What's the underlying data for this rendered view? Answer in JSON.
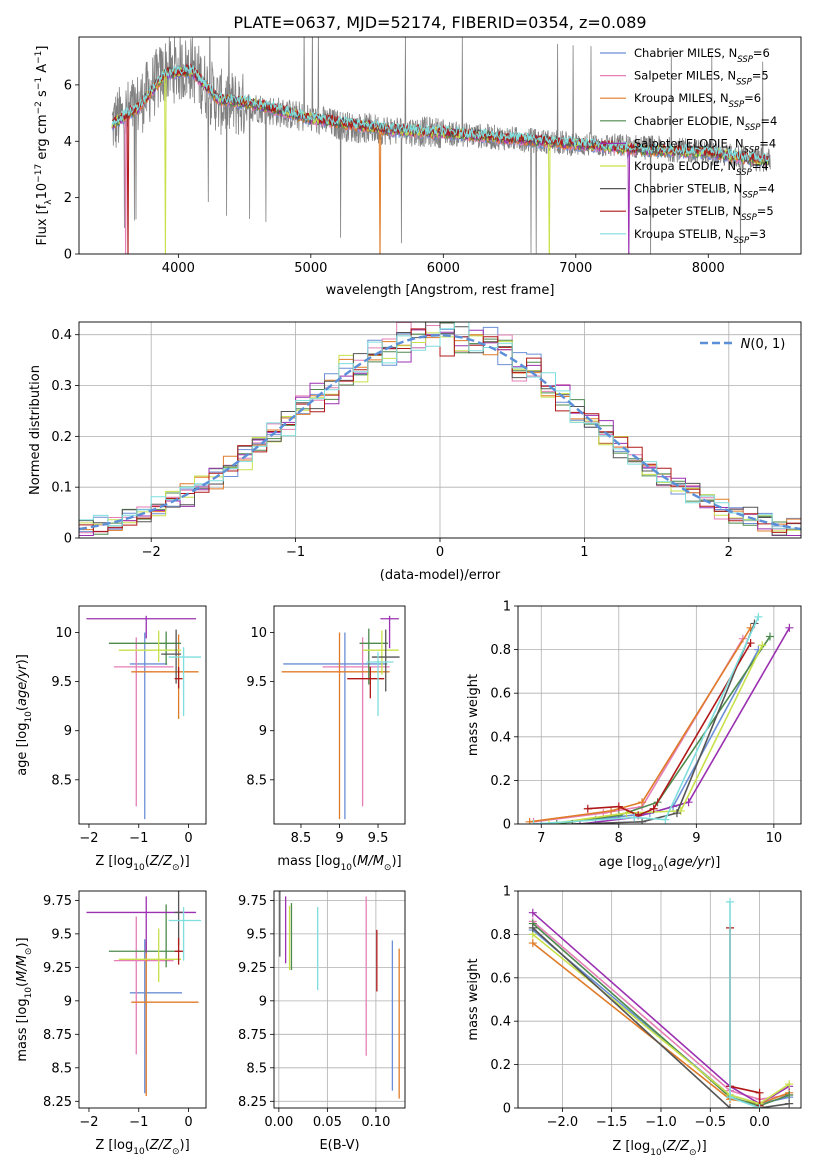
{
  "figure": {
    "title": "PLATE=0637, MJD=52174, FIBERID=0354, z=0.089",
    "background": "#ffffff"
  },
  "series": [
    {
      "name": "Chabrier MILES, N$_{SSP}$=6",
      "label": "Chabrier MILES, N",
      "sub": "SSP",
      "suffix": "=6",
      "color": "#6b8fd6"
    },
    {
      "name": "Salpeter MILES, N$_{SSP}$=5",
      "label": "Salpeter MILES, N",
      "sub": "SSP",
      "suffix": "=5",
      "color": "#e57fb6"
    },
    {
      "name": "Kroupa MILES, N$_{SSP}$=6",
      "label": "Kroupa MILES, N",
      "sub": "SSP",
      "suffix": "=6",
      "color": "#e07b28"
    },
    {
      "name": "Chabrier ELODIE, N$_{SSP}$=4",
      "label": "Chabrier ELODIE, N",
      "sub": "SSP",
      "suffix": "=4",
      "color": "#4e8a4e"
    },
    {
      "name": "Salpeter ELODIE, N$_{SSP}$=4",
      "label": "Salpeter ELODIE, N",
      "sub": "SSP",
      "suffix": "=4",
      "color": "#9b30b0"
    },
    {
      "name": "Kroupa ELODIE, N$_{SSP}$=4",
      "label": "Kroupa ELODIE, N",
      "sub": "SSP",
      "suffix": "=4",
      "color": "#c8e04a"
    },
    {
      "name": "Chabrier STELIB, N$_{SSP}$=4",
      "label": "Chabrier STELIB, N",
      "sub": "SSP",
      "suffix": "=4",
      "color": "#555555"
    },
    {
      "name": "Salpeter STELIB, N$_{SSP}$=5",
      "label": "Salpeter STELIB, N",
      "sub": "SSP",
      "suffix": "=5",
      "color": "#b01818"
    },
    {
      "name": "Kroupa STELIB, N$_{SSP}$=3",
      "label": "Kroupa STELIB, N",
      "sub": "SSP",
      "suffix": "=3",
      "color": "#7fdede"
    }
  ],
  "data_color": "#808080",
  "chart_data": [
    {
      "id": "spectrum",
      "type": "line",
      "xlabel": "wavelength [Angstrom, rest frame]",
      "ylabel": "Flux [f$_\\lambda$10$^{-17}$ erg cm$^{-2}$ s$^{-1}$ A$^{-1}$]",
      "ylabel_parts": [
        "Flux [f",
        "λ",
        "10",
        "−17",
        " erg cm",
        "−2",
        " s",
        "−1",
        " A",
        "−1",
        "]"
      ],
      "xlim": [
        3250,
        8700
      ],
      "ylim": [
        0,
        7.7
      ],
      "xticks": [
        4000,
        5000,
        6000,
        7000,
        8000
      ],
      "yticks": [
        0,
        2,
        4,
        6
      ],
      "data_knots": {
        "x": [
          3500,
          3700,
          3900,
          4100,
          4300,
          4600,
          5000,
          5300,
          5600,
          6000,
          6500,
          7000,
          7500,
          8000,
          8450
        ],
        "y": [
          4.6,
          5.3,
          6.5,
          6.6,
          5.4,
          5.2,
          4.8,
          4.5,
          4.4,
          4.3,
          4.1,
          3.9,
          3.8,
          3.6,
          3.3
        ]
      },
      "model_knots": {
        "x": [
          3500,
          3700,
          3900,
          4100,
          4300,
          4600,
          5000,
          5300,
          5600,
          6000,
          6500,
          7000,
          7500,
          8000,
          8450
        ],
        "y": [
          4.6,
          5.2,
          6.4,
          6.5,
          5.5,
          5.3,
          4.8,
          4.6,
          4.4,
          4.3,
          4.1,
          3.9,
          3.7,
          3.6,
          3.3
        ]
      },
      "data_xrange": [
        3500,
        8470
      ],
      "legend_position": "upper right"
    },
    {
      "id": "residuals",
      "type": "histogram",
      "xlabel": "(data-model)/error",
      "ylabel": "Normed distribution",
      "xlim": [
        -2.5,
        2.5
      ],
      "ylim": [
        0,
        0.425
      ],
      "xticks": [
        -2,
        -1,
        0,
        1,
        2
      ],
      "yticks": [
        0.0,
        0.1,
        0.2,
        0.3,
        0.4
      ],
      "bin_width": 0.1,
      "gaussian_label": "N(0,1)",
      "gaussian_color": "#5b8fd8",
      "grid": true,
      "legend_position": "upper right"
    },
    {
      "id": "age_vs_Z",
      "type": "errorbar",
      "xlabel": "Z [log$_{10}$(Z/Z$_\\odot$)]",
      "ylabel": "age  [log$_{10}$(age/yr)]",
      "xlim": [
        -2.2,
        0.35
      ],
      "ylim": [
        8.05,
        10.27
      ],
      "xticks": [
        -2,
        -1,
        0
      ],
      "yticks": [
        8.5,
        9.0,
        9.5,
        10.0
      ],
      "points": [
        {
          "x": -0.88,
          "xerr": [
            0.3,
            0.45
          ],
          "y": 9.68,
          "yerr": [
            1.58,
            0.32
          ]
        },
        {
          "x": -1.05,
          "xerr": [
            0.45,
            0.75
          ],
          "y": 9.65,
          "yerr": [
            1.42,
            0.3
          ]
        },
        {
          "x": -0.2,
          "xerr": [
            0.95,
            0.4
          ],
          "y": 9.6,
          "yerr": [
            0.48,
            0.38
          ]
        },
        {
          "x": -0.45,
          "xerr": [
            1.15,
            0.3
          ],
          "y": 9.89,
          "yerr": [
            0.22,
            0.12
          ]
        },
        {
          "x": -0.85,
          "xerr": [
            1.2,
            1.0
          ],
          "y": 10.14,
          "yerr": [
            0.2,
            0.03
          ]
        },
        {
          "x": -0.6,
          "xerr": [
            0.8,
            0.45
          ],
          "y": 9.82,
          "yerr": [
            0.12,
            0.2
          ]
        },
        {
          "x": -0.25,
          "xerr": [
            0.3,
            0.1
          ],
          "y": 9.78,
          "yerr": [
            0.3,
            0.25
          ]
        },
        {
          "x": -0.2,
          "xerr": [
            0.08,
            0.08
          ],
          "y": 9.53,
          "yerr": [
            0.1,
            0.12
          ]
        },
        {
          "x": -0.1,
          "xerr": [
            0.3,
            0.35
          ],
          "y": 9.75,
          "yerr": [
            0.6,
            0.1
          ]
        }
      ]
    },
    {
      "id": "age_vs_mass",
      "type": "errorbar",
      "xlabel": "mass [log$_{10}$(M/M$_\\odot$)]",
      "ylabel": "",
      "xlim": [
        8.15,
        9.85
      ],
      "ylim": [
        8.05,
        10.27
      ],
      "xticks": [
        8.5,
        9.0,
        9.5
      ],
      "yticks": [
        8.5,
        9.0,
        9.5,
        10.0
      ],
      "points": [
        {
          "x": 9.07,
          "xerr": [
            0.8,
            0.55
          ],
          "y": 9.68,
          "yerr": [
            1.58,
            0.32
          ]
        },
        {
          "x": 9.3,
          "xerr": [
            0.52,
            0.35
          ],
          "y": 9.65,
          "yerr": [
            1.42,
            0.3
          ]
        },
        {
          "x": 9.0,
          "xerr": [
            0.75,
            0.65
          ],
          "y": 9.6,
          "yerr": [
            1.5,
            0.4
          ]
        },
        {
          "x": 9.38,
          "xerr": [
            0.12,
            0.25
          ],
          "y": 9.89,
          "yerr": [
            0.42,
            0.15
          ]
        },
        {
          "x": 9.65,
          "xerr": [
            0.12,
            0.12
          ],
          "y": 10.14,
          "yerr": [
            0.3,
            0.03
          ]
        },
        {
          "x": 9.55,
          "xerr": [
            0.25,
            0.22
          ],
          "y": 9.82,
          "yerr": [
            0.25,
            0.2
          ]
        },
        {
          "x": 9.6,
          "xerr": [
            0.18,
            0.18
          ],
          "y": 9.75,
          "yerr": [
            0.35,
            0.28
          ]
        },
        {
          "x": 9.4,
          "xerr": [
            0.3,
            0.18
          ],
          "y": 9.53,
          "yerr": [
            0.2,
            0.12
          ]
        },
        {
          "x": 9.5,
          "xerr": [
            0.15,
            0.2
          ],
          "y": 9.7,
          "yerr": [
            0.55,
            0.1
          ]
        }
      ]
    },
    {
      "id": "weight_vs_age",
      "type": "line",
      "xlabel": "age  [log$_{10}$(age/yr)]",
      "ylabel": "mass weight",
      "xlim": [
        6.7,
        10.35
      ],
      "ylim": [
        0,
        1.0
      ],
      "xticks": [
        7,
        8,
        9,
        10
      ],
      "yticks": [
        0.0,
        0.2,
        0.4,
        0.6,
        0.8,
        1.0
      ],
      "grid": true,
      "series_points": [
        {
          "x": [
            7.0,
            7.7,
            8.4,
            8.7,
            9.8
          ],
          "y": [
            0.0,
            0.02,
            0.05,
            0.08,
            0.8
          ]
        },
        {
          "x": [
            6.9,
            7.8,
            8.3,
            9.6
          ],
          "y": [
            0.01,
            0.05,
            0.08,
            0.85
          ]
        },
        {
          "x": [
            6.85,
            7.9,
            8.3,
            9.7
          ],
          "y": [
            0.01,
            0.06,
            0.1,
            0.9
          ]
        },
        {
          "x": [
            7.2,
            8.0,
            8.5,
            9.95
          ],
          "y": [
            0.0,
            0.04,
            0.1,
            0.86
          ]
        },
        {
          "x": [
            7.5,
            8.2,
            8.9,
            10.2
          ],
          "y": [
            0.0,
            0.03,
            0.1,
            0.9
          ]
        },
        {
          "x": [
            7.1,
            8.1,
            8.8,
            9.85
          ],
          "y": [
            0.0,
            0.05,
            0.06,
            0.82
          ]
        },
        {
          "x": [
            7.4,
            8.3,
            8.75,
            9.75
          ],
          "y": [
            0.0,
            0.01,
            0.05,
            0.92
          ]
        },
        {
          "x": [
            7.6,
            8.0,
            8.25,
            8.45,
            9.7
          ],
          "y": [
            0.07,
            0.08,
            0.04,
            0.07,
            0.83
          ]
        },
        {
          "x": [
            6.9,
            8.2,
            8.6,
            9.8
          ],
          "y": [
            0.0,
            0.03,
            0.02,
            0.95
          ]
        }
      ]
    },
    {
      "id": "mass_vs_Z",
      "type": "errorbar",
      "xlabel": "Z [log$_{10}$(Z/Z$_\\odot$)]",
      "ylabel": "mass [log$_{10}$(M/M$_\\odot$)]",
      "xlim": [
        -2.2,
        0.35
      ],
      "ylim": [
        8.2,
        9.82
      ],
      "xticks": [
        -2,
        -1,
        0
      ],
      "yticks": [
        8.25,
        8.5,
        8.75,
        9.0,
        9.25,
        9.5,
        9.75
      ],
      "points": [
        {
          "x": -0.88,
          "xerr": [
            0.3,
            0.75
          ],
          "y": 9.06,
          "yerr": [
            0.75,
            0.4
          ]
        },
        {
          "x": -1.05,
          "xerr": [
            0.45,
            0.75
          ],
          "y": 9.3,
          "yerr": [
            0.7,
            0.33
          ]
        },
        {
          "x": -0.85,
          "xerr": [
            0.3,
            1.05
          ],
          "y": 8.99,
          "yerr": [
            0.7,
            0.45
          ]
        },
        {
          "x": -0.45,
          "xerr": [
            1.15,
            0.3
          ],
          "y": 9.37,
          "yerr": [
            0.12,
            0.35
          ]
        },
        {
          "x": -0.85,
          "xerr": [
            1.2,
            1.0
          ],
          "y": 9.66,
          "yerr": [
            0.3,
            0.12
          ]
        },
        {
          "x": -0.6,
          "xerr": [
            0.8,
            0.45
          ],
          "y": 9.31,
          "yerr": [
            0.17,
            0.23
          ]
        },
        {
          "x": -0.2,
          "xerr": [
            0.08,
            0.08
          ],
          "y": 9.66,
          "yerr": [
            0.25,
            0.17
          ]
        },
        {
          "x": -0.2,
          "xerr": [
            0.08,
            0.1
          ],
          "y": 9.37,
          "yerr": [
            0.1,
            0.1
          ]
        },
        {
          "x": -0.1,
          "xerr": [
            0.3,
            0.35
          ],
          "y": 9.6,
          "yerr": [
            0.3,
            0.1
          ]
        }
      ]
    },
    {
      "id": "mass_vs_ebv",
      "type": "errorbar",
      "xlabel": "E(B-V)",
      "ylabel": "",
      "xlim": [
        -0.005,
        0.13
      ],
      "ylim": [
        8.2,
        9.82
      ],
      "xticks": [
        0.0,
        0.05,
        0.1
      ],
      "xtick_labels": [
        "0.00",
        "0.05",
        "0.10"
      ],
      "yticks": [
        8.25,
        8.5,
        8.75,
        9.0,
        9.25,
        9.5,
        9.75
      ],
      "grid": true,
      "points": [
        {
          "x": 0.117,
          "y": 8.88,
          "yerr": [
            0.55,
            0.57
          ]
        },
        {
          "x": 0.09,
          "y": 9.19,
          "yerr": [
            0.6,
            0.59
          ]
        },
        {
          "x": 0.124,
          "y": 8.84,
          "yerr": [
            0.57,
            0.55
          ]
        },
        {
          "x": 0.013,
          "y": 9.48,
          "yerr": [
            0.25,
            0.25
          ]
        },
        {
          "x": 0.007,
          "y": 9.53,
          "yerr": [
            0.25,
            0.25
          ]
        },
        {
          "x": 0.011,
          "y": 9.47,
          "yerr": [
            0.24,
            0.24
          ]
        },
        {
          "x": 0.001,
          "y": 9.58,
          "yerr": [
            0.25,
            0.25
          ]
        },
        {
          "x": 0.101,
          "y": 9.3,
          "yerr": [
            0.23,
            0.23
          ]
        },
        {
          "x": 0.04,
          "y": 9.39,
          "yerr": [
            0.31,
            0.31
          ]
        }
      ]
    },
    {
      "id": "weight_vs_Z",
      "type": "line",
      "xlabel": "Z [log$_{10}$(Z/Z$_\\odot$)]",
      "ylabel": "mass weight",
      "xlim": [
        -2.45,
        0.42
      ],
      "ylim": [
        0,
        1.0
      ],
      "xticks": [
        -2.0,
        -1.5,
        -1.0,
        -0.5,
        0.0
      ],
      "xtick_labels": [
        "−2.0",
        "−1.5",
        "−1.0",
        "−0.5",
        "0.0"
      ],
      "yticks": [
        0.0,
        0.2,
        0.4,
        0.6,
        0.8,
        1.0
      ],
      "grid": true,
      "series_points": [
        {
          "x": [
            -2.3,
            -0.3,
            0.0,
            0.3
          ],
          "y": [
            0.82,
            0.06,
            0.02,
            0.05
          ]
        },
        {
          "x": [
            -2.3,
            -0.3,
            0.0,
            0.3
          ],
          "y": [
            0.86,
            0.08,
            0.04,
            0.06
          ]
        },
        {
          "x": [
            -2.3,
            -0.3,
            0.0,
            0.3
          ],
          "y": [
            0.76,
            0.04,
            0.02,
            0.07
          ]
        },
        {
          "x": [
            -2.3,
            -0.3,
            0.0,
            0.3
          ],
          "y": [
            0.85,
            0.05,
            0.01,
            0.06
          ]
        },
        {
          "x": [
            -2.3,
            -0.3,
            0.0,
            0.3
          ],
          "y": [
            0.9,
            0.1,
            0.02,
            0.1
          ]
        },
        {
          "x": [
            -2.3,
            -0.3,
            0.0,
            0.3
          ],
          "y": [
            0.8,
            0.06,
            0.02,
            0.11
          ]
        },
        {
          "x": [
            -2.3,
            -0.3,
            0.0,
            0.3
          ],
          "y": [
            0.83,
            0.0,
            0.0,
            0.02
          ]
        },
        {
          "x": [
            -0.3,
            -0.3,
            0.0,
            0.0
          ],
          "y": [
            0.83,
            0.1,
            0.07,
            0.01
          ]
        },
        {
          "x": [
            -0.3,
            -0.3,
            0.0
          ],
          "y": [
            0.95,
            0.05,
            0.0
          ]
        }
      ]
    }
  ]
}
